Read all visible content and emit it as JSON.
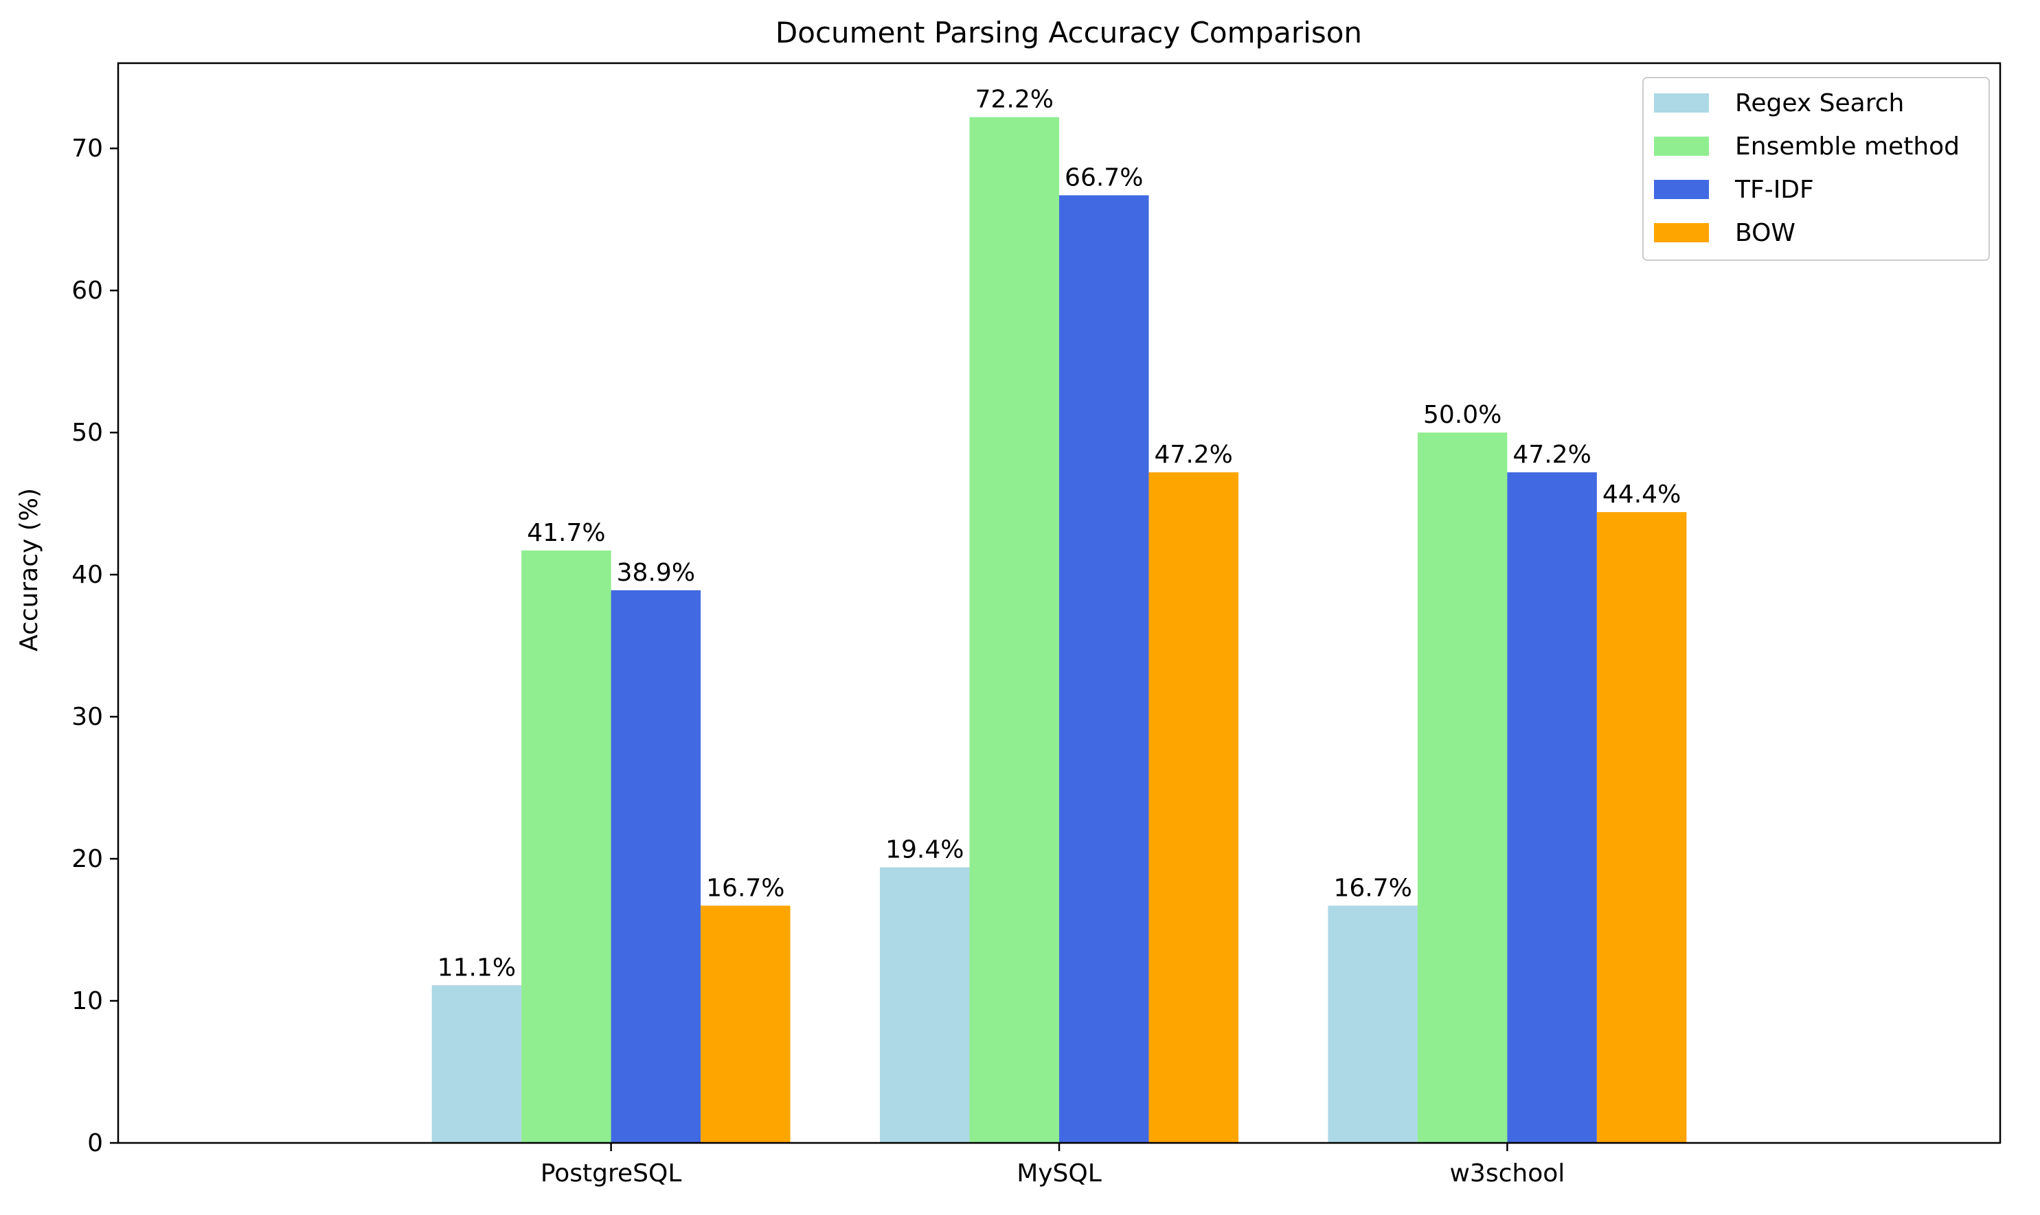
{
  "chart_data": {
    "type": "bar",
    "title": "Document Parsing Accuracy Comparison",
    "xlabel": "",
    "ylabel": "Accuracy (%)",
    "categories": [
      "PostgreSQL",
      "MySQL",
      "w3school"
    ],
    "series": [
      {
        "name": "Regex Search",
        "values": [
          11.1,
          19.4,
          16.7
        ],
        "color": "#add8e6"
      },
      {
        "name": "Ensemble method",
        "values": [
          41.7,
          72.2,
          50.0
        ],
        "color": "#90ee90"
      },
      {
        "name": "TF-IDF",
        "values": [
          38.9,
          66.7,
          47.2
        ],
        "color": "#4169e1"
      },
      {
        "name": "BOW",
        "values": [
          16.7,
          47.2,
          44.4
        ],
        "color": "#ffa500"
      }
    ],
    "ylim": [
      0,
      76
    ],
    "yticks": [
      0,
      10,
      20,
      30,
      40,
      50,
      60,
      70
    ],
    "value_label_format": "{v}%",
    "legend_position": "upper right",
    "grid": false
  }
}
